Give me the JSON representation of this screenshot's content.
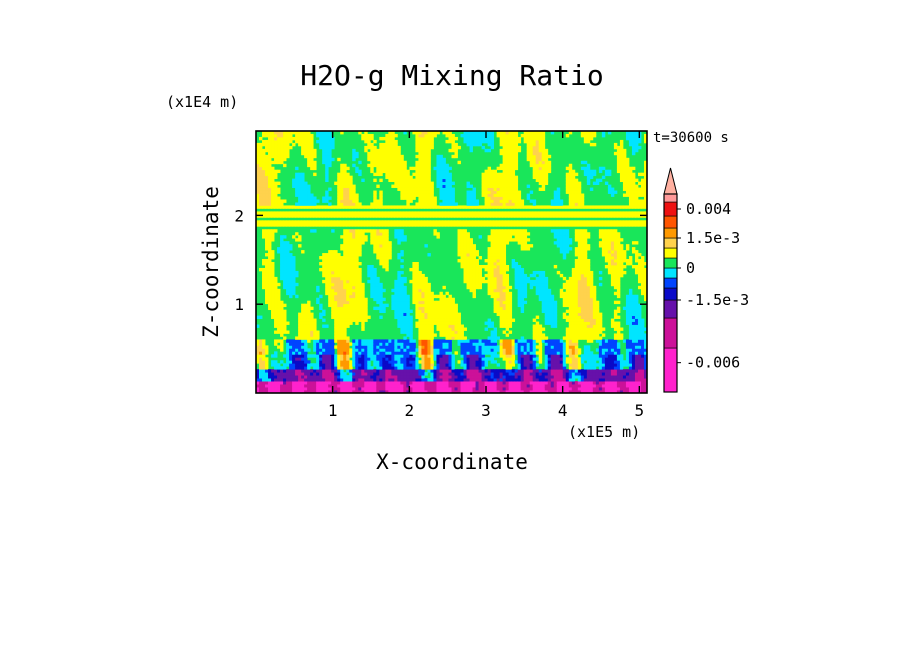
{
  "chart_data": {
    "type": "heatmap",
    "title": "H2O-g Mixing Ratio",
    "xlabel": "X-coordinate",
    "ylabel": "Z-coordinate",
    "x_unit": "(x1E5 m)",
    "y_unit": "(x1E4 m)",
    "time_label": "t=30600 s",
    "xlim": [
      0.0,
      5.1
    ],
    "ylim": [
      0.0,
      2.95
    ],
    "x_ticks": [
      1,
      2,
      3,
      4,
      5
    ],
    "y_ticks": [
      1,
      2
    ],
    "x_tick_labels": [
      "1",
      "2",
      "3",
      "4",
      "5"
    ],
    "y_tick_labels": [
      "1",
      "2"
    ],
    "colorbar": {
      "colors": [
        "#ff22cc",
        "#cc1199",
        "#6611aa",
        "#0a0ac8",
        "#0044ff",
        "#00e5ff",
        "#19e65a",
        "#ffff00",
        "#ffd24d",
        "#ff9900",
        "#ff5500",
        "#ee1111",
        "#ff9999"
      ],
      "extend_top_color": "#ffb0a0",
      "bounds": [
        -0.009,
        -0.0045,
        -0.0025,
        -0.0015,
        -0.001,
        -0.0005,
        0,
        0.0005,
        0.001,
        0.0015,
        0.0025,
        0.0035,
        0.0045
      ],
      "tick_values": [
        0.004,
        0.0015,
        0,
        -0.0015,
        -0.006
      ],
      "tick_labels": [
        "0.004",
        "1.5e-3",
        "0",
        "-1.5e-3",
        "-0.006"
      ]
    },
    "field_description_levels": {
      "surface_layer": "blue/purple, mostly negative",
      "boundary_layer": "cyan band with orange positive cells",
      "mid_troposphere": "green/yellow plumes",
      "upper_layer": "yellow and green horizontal bands near 2.0"
    }
  },
  "colors": {
    "frame": "#000000",
    "background": "#ffffff"
  }
}
